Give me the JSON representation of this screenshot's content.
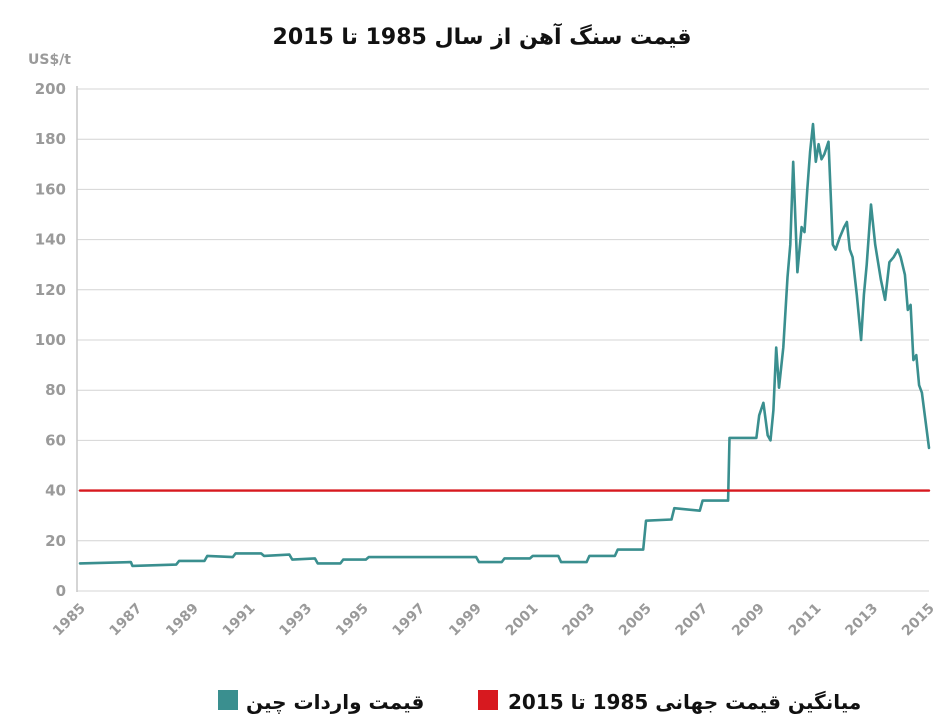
{
  "chart_data": {
    "type": "line",
    "title": "قیمت سنگ آهن از سال 1985 تا 2015",
    "ylabel": "US$/t",
    "xlabel": "",
    "xlim": [
      1985,
      2015
    ],
    "ylim": [
      0,
      200
    ],
    "grid": true,
    "legend_position": "bottom",
    "x_ticks": [
      "1985",
      "1987",
      "1989",
      "1991",
      "1993",
      "1995",
      "1997",
      "1999",
      "2001",
      "2003",
      "2005",
      "2007",
      "2009",
      "2011",
      "2013",
      "2015"
    ],
    "y_ticks": [
      "0",
      "20",
      "40",
      "60",
      "80",
      "100",
      "120",
      "140",
      "160",
      "180",
      "200"
    ],
    "series": [
      {
        "name": "قیمت واردات چین",
        "color": "#3a8f8f",
        "x": [
          1985.0,
          1986.8,
          1986.85,
          1988.4,
          1988.5,
          1989.4,
          1989.5,
          1990.4,
          1990.5,
          1991.4,
          1991.5,
          1992.4,
          1992.5,
          1993.3,
          1993.4,
          1994.2,
          1994.3,
          1995.1,
          1995.2,
          1996.1,
          1996.2,
          1999.0,
          1999.1,
          1999.9,
          2000.0,
          2000.9,
          2001.0,
          2001.9,
          2002.0,
          2002.9,
          2003.0,
          2003.9,
          2004.0,
          2004.9,
          2005.0,
          2005.9,
          2006.0,
          2006.9,
          2007.0,
          2007.9,
          2007.95,
          2008.9,
          2009.0,
          2009.15,
          2009.3,
          2009.4,
          2009.5,
          2009.6,
          2009.7,
          2009.85,
          2010.0,
          2010.1,
          2010.2,
          2010.35,
          2010.5,
          2010.6,
          2010.7,
          2010.8,
          2010.9,
          2011.0,
          2011.1,
          2011.2,
          2011.3,
          2011.45,
          2011.6,
          2011.7,
          2011.85,
          2012.0,
          2012.1,
          2012.2,
          2012.3,
          2012.45,
          2012.6,
          2012.7,
          2012.8,
          2012.95,
          2013.1,
          2013.3,
          2013.45,
          2013.6,
          2013.75,
          2013.9,
          2014.0,
          2014.15,
          2014.25,
          2014.35,
          2014.45,
          2014.55,
          2014.65,
          2014.75,
          2014.85,
          2015.0
        ],
        "values": [
          11,
          11.5,
          10,
          10.5,
          12,
          12,
          14,
          13.5,
          15,
          15,
          14,
          14.5,
          12.5,
          13,
          11,
          11,
          12.5,
          12.5,
          13.5,
          13.5,
          13.5,
          13.5,
          11.5,
          11.5,
          13,
          13,
          14,
          14,
          11.5,
          11.5,
          14,
          14,
          16.5,
          16.5,
          28,
          28.5,
          33,
          32,
          36,
          36,
          61,
          61,
          70,
          75,
          62,
          60,
          72,
          97,
          81,
          97,
          125,
          138,
          171,
          127,
          145,
          143,
          160,
          175,
          186,
          171,
          178,
          172,
          174,
          179,
          138,
          136,
          141,
          145,
          147,
          136,
          133,
          118,
          100,
          118,
          130,
          154,
          138,
          124,
          116,
          131,
          133,
          136,
          133,
          126,
          112,
          114,
          92,
          94,
          82,
          79,
          70,
          57
        ]
      },
      {
        "name": "میانگین قیمت جهانی 1985 تا 2015",
        "color": "#d7191f",
        "x": [
          1985,
          2015
        ],
        "values": [
          40,
          40
        ]
      }
    ]
  }
}
